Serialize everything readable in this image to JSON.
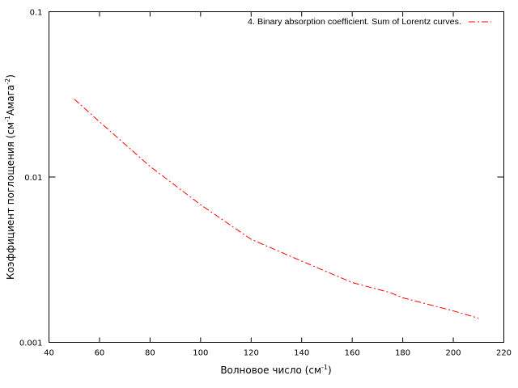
{
  "chart_data": {
    "type": "line",
    "log_y": true,
    "xlabel": [
      "Волновое число (см",
      "-1",
      ")"
    ],
    "ylabel": [
      "Коэффициент поглощения (см",
      "-1",
      "Амага",
      "-2",
      ")"
    ],
    "x": [
      50,
      60,
      80,
      100,
      120,
      140,
      160,
      175,
      180,
      200,
      210
    ],
    "series": [
      {
        "name": "4. Binary absorption coefficient. Sum of Lorentz curves.",
        "color": "#ff0000",
        "values": [
          0.0296,
          0.0216,
          0.0116,
          0.0068,
          0.0042,
          0.0031,
          0.0023,
          0.002,
          0.00186,
          0.00155,
          0.0014
        ]
      }
    ],
    "xlim": [
      40,
      220
    ],
    "xticks": [
      40,
      60,
      80,
      100,
      120,
      140,
      160,
      180,
      200,
      220
    ],
    "ylim": [
      0.001,
      0.1
    ],
    "yticks": [
      0.001,
      0.01,
      0.1
    ],
    "legend": "top-right"
  }
}
